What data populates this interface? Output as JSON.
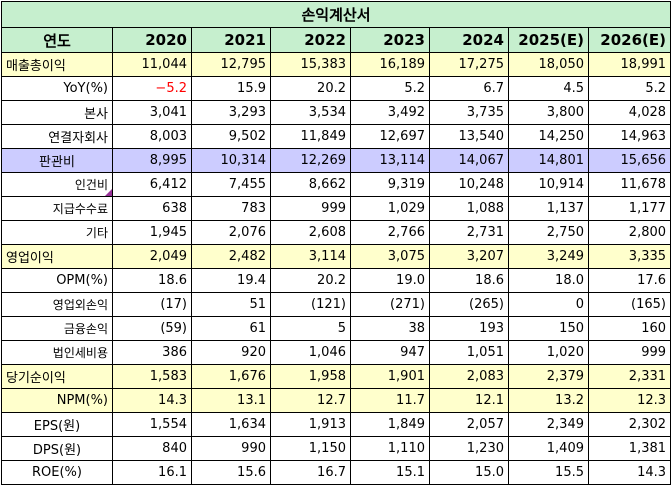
{
  "title": "손익계산서",
  "header": {
    "label": "연도",
    "years": [
      "2020",
      "2021",
      "2022",
      "2023",
      "2024",
      "2025(E)",
      "2026(E)"
    ]
  },
  "rows": [
    {
      "label": "매출총이익",
      "values": [
        "11,044",
        "12,795",
        "15,383",
        "16,189",
        "17,275",
        "18,050",
        "18,991"
      ]
    },
    {
      "label": "YoY(%)",
      "values": [
        "−5.2",
        "15.9",
        "20.2",
        "5.2",
        "6.7",
        "4.5",
        "5.2"
      ]
    },
    {
      "label": "본사",
      "values": [
        "3,041",
        "3,293",
        "3,534",
        "3,492",
        "3,735",
        "3,800",
        "4,028"
      ]
    },
    {
      "label": "연결자회사",
      "values": [
        "8,003",
        "9,502",
        "11,849",
        "12,697",
        "13,540",
        "14,250",
        "14,963"
      ]
    },
    {
      "label": "판관비",
      "values": [
        "8,995",
        "10,314",
        "12,269",
        "13,114",
        "14,067",
        "14,801",
        "15,656"
      ]
    },
    {
      "label": "인건비",
      "values": [
        "6,412",
        "7,455",
        "8,662",
        "9,319",
        "10,248",
        "10,914",
        "11,678"
      ]
    },
    {
      "label": "지급수수료",
      "values": [
        "638",
        "783",
        "999",
        "1,029",
        "1,088",
        "1,137",
        "1,177"
      ]
    },
    {
      "label": "기타",
      "values": [
        "1,945",
        "2,076",
        "2,608",
        "2,766",
        "2,731",
        "2,750",
        "2,800"
      ]
    },
    {
      "label": "영업이익",
      "values": [
        "2,049",
        "2,482",
        "3,114",
        "3,075",
        "3,207",
        "3,249",
        "3,335"
      ]
    },
    {
      "label": "OPM(%)",
      "values": [
        "18.6",
        "19.4",
        "20.2",
        "19.0",
        "18.6",
        "18.0",
        "17.6"
      ]
    },
    {
      "label": "영업외손익",
      "values": [
        "(17)",
        "51",
        "(121)",
        "(271)",
        "(265)",
        "0",
        "(165)"
      ]
    },
    {
      "label": "금융손익",
      "values": [
        "(59)",
        "61",
        "5",
        "38",
        "193",
        "150",
        "160"
      ]
    },
    {
      "label": "법인세비용",
      "values": [
        "386",
        "920",
        "1,046",
        "947",
        "1,051",
        "1,020",
        "999"
      ]
    },
    {
      "label": "당기순이익",
      "values": [
        "1,583",
        "1,676",
        "1,958",
        "1,901",
        "2,083",
        "2,379",
        "2,331"
      ]
    },
    {
      "label": "NPM(%)",
      "values": [
        "14.3",
        "13.1",
        "12.7",
        "11.7",
        "12.1",
        "13.2",
        "12.3"
      ]
    },
    {
      "label": "EPS(원)",
      "values": [
        "1,554",
        "1,634",
        "1,913",
        "1,849",
        "2,057",
        "2,349",
        "2,302"
      ]
    },
    {
      "label": "DPS(원)",
      "values": [
        "840",
        "990",
        "1,150",
        "1,110",
        "1,230",
        "1,409",
        "1,381"
      ]
    },
    {
      "label": "ROE(%)",
      "values": [
        "16.1",
        "15.6",
        "16.7",
        "15.1",
        "15.0",
        "15.5",
        "14.3"
      ]
    }
  ],
  "colors": {
    "header_bg": "#c6efce",
    "highlight_yellow": "#ffffcc",
    "highlight_purple": "#ccccff",
    "negative_text": "#ff0000"
  }
}
